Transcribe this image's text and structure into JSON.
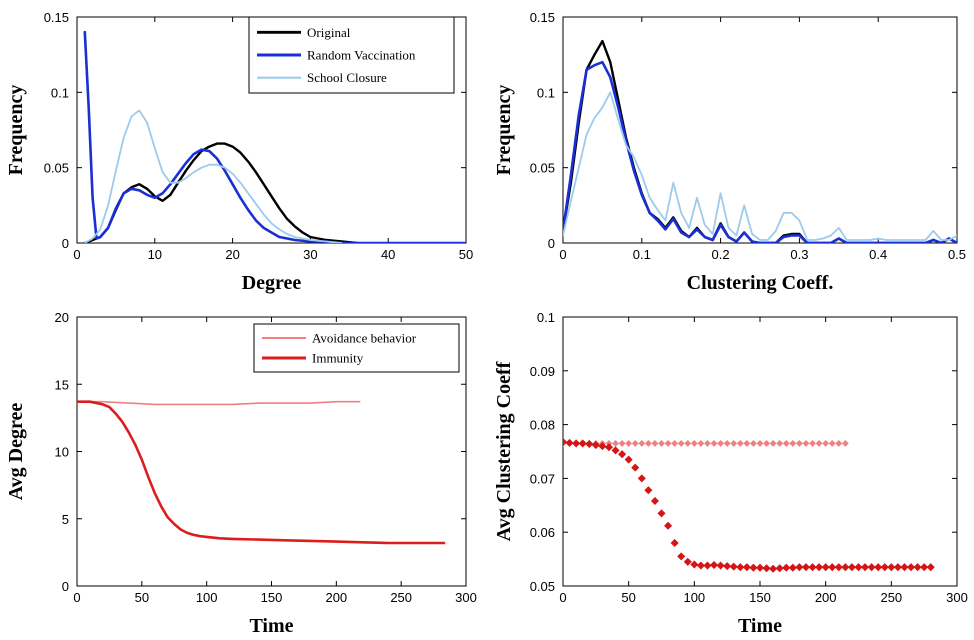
{
  "chart_data": [
    {
      "type": "line",
      "panel": "top-left",
      "xlabel": "Degree",
      "ylabel": "Frequency",
      "xlim": [
        0,
        50
      ],
      "ylim": [
        0,
        0.15
      ],
      "xticks": [
        0,
        10,
        20,
        30,
        40,
        50
      ],
      "yticks": [
        0,
        0.05,
        0.1,
        0.15
      ],
      "xtick_labels": [
        "0",
        "10",
        "20",
        "30",
        "40",
        "50"
      ],
      "ytick_labels": [
        "0",
        "0.05",
        "0.1",
        "0.15"
      ],
      "grid": false,
      "legend_position": "top-right",
      "series": [
        {
          "name": "Original",
          "color": "#000000",
          "x": [
            1,
            2,
            3,
            4,
            5,
            6,
            7,
            8,
            9,
            10,
            11,
            12,
            13,
            14,
            15,
            16,
            17,
            18,
            19,
            20,
            21,
            22,
            23,
            24,
            25,
            26,
            27,
            28,
            29,
            30,
            32,
            34,
            36
          ],
          "y": [
            0.0,
            0.002,
            0.004,
            0.01,
            0.022,
            0.033,
            0.037,
            0.039,
            0.036,
            0.031,
            0.028,
            0.032,
            0.04,
            0.048,
            0.055,
            0.061,
            0.064,
            0.066,
            0.066,
            0.064,
            0.06,
            0.054,
            0.047,
            0.039,
            0.031,
            0.023,
            0.016,
            0.011,
            0.007,
            0.004,
            0.002,
            0.001,
            0.0
          ]
        },
        {
          "name": "Random Vaccination",
          "color": "#1a2fd4",
          "x": [
            1,
            1.5,
            2,
            2.5,
            3,
            4,
            5,
            6,
            7,
            8,
            9,
            10,
            11,
            12,
            13,
            14,
            15,
            16,
            17,
            18,
            19,
            20,
            21,
            22,
            23,
            24,
            25,
            26,
            27,
            28,
            30,
            32,
            34,
            36,
            40,
            45,
            50
          ],
          "y": [
            0.14,
            0.09,
            0.03,
            0.003,
            0.004,
            0.01,
            0.023,
            0.033,
            0.036,
            0.035,
            0.032,
            0.03,
            0.033,
            0.039,
            0.046,
            0.053,
            0.059,
            0.062,
            0.061,
            0.056,
            0.048,
            0.039,
            0.03,
            0.022,
            0.015,
            0.01,
            0.007,
            0.004,
            0.003,
            0.002,
            0.001,
            0.001,
            0.0,
            0.0,
            0.0,
            0.0,
            0.0
          ]
        },
        {
          "name": "School Closure",
          "color": "#9ccbed",
          "x": [
            1,
            2,
            3,
            4,
            5,
            6,
            7,
            8,
            9,
            10,
            11,
            12,
            13,
            14,
            15,
            16,
            17,
            18,
            19,
            20,
            21,
            22,
            23,
            24,
            25,
            26,
            27,
            28,
            30,
            32,
            34
          ],
          "y": [
            0.0,
            0.003,
            0.009,
            0.025,
            0.048,
            0.07,
            0.084,
            0.088,
            0.08,
            0.063,
            0.047,
            0.04,
            0.04,
            0.043,
            0.047,
            0.05,
            0.052,
            0.052,
            0.05,
            0.046,
            0.04,
            0.033,
            0.026,
            0.019,
            0.013,
            0.009,
            0.006,
            0.004,
            0.002,
            0.001,
            0.0
          ]
        }
      ]
    },
    {
      "type": "line",
      "panel": "top-right",
      "xlabel": "Clustering Coeff.",
      "ylabel": "Frequency",
      "xlim": [
        0,
        0.5
      ],
      "ylim": [
        0,
        0.15
      ],
      "xticks": [
        0,
        0.1,
        0.2,
        0.3,
        0.4,
        0.5
      ],
      "yticks": [
        0,
        0.05,
        0.1,
        0.15
      ],
      "xtick_labels": [
        "0",
        "0.1",
        "0.2",
        "0.3",
        "0.4",
        "0.5"
      ],
      "ytick_labels": [
        "0",
        "0.05",
        "0.1",
        "0.15"
      ],
      "grid": false,
      "series": [
        {
          "name": "Original",
          "color": "#000000",
          "x": [
            0,
            0.01,
            0.02,
            0.03,
            0.04,
            0.05,
            0.06,
            0.07,
            0.08,
            0.09,
            0.1,
            0.11,
            0.12,
            0.13,
            0.14,
            0.15,
            0.16,
            0.17,
            0.18,
            0.19,
            0.2,
            0.21,
            0.22,
            0.23,
            0.24,
            0.25,
            0.26,
            0.27,
            0.28,
            0.29,
            0.3,
            0.31,
            0.32,
            0.33,
            0.34,
            0.35,
            0.36,
            0.37,
            0.38,
            0.39,
            0.4,
            0.42,
            0.44,
            0.46,
            0.47,
            0.48,
            0.49,
            0.5
          ],
          "y": [
            0.008,
            0.04,
            0.08,
            0.115,
            0.125,
            0.134,
            0.12,
            0.095,
            0.07,
            0.05,
            0.033,
            0.02,
            0.016,
            0.01,
            0.017,
            0.008,
            0.004,
            0.01,
            0.004,
            0.002,
            0.013,
            0.004,
            0.001,
            0.007,
            0.001,
            0.0,
            0.0,
            0.0,
            0.005,
            0.006,
            0.006,
            0.0,
            0.0,
            0.0,
            0.0,
            0.003,
            0.0,
            0.0,
            0.0,
            0.0,
            0.0,
            0.0,
            0.0,
            0.0,
            0.002,
            0.0,
            0.003,
            0.0
          ]
        },
        {
          "name": "Random Vaccination",
          "color": "#1a2fd4",
          "x": [
            0,
            0.01,
            0.02,
            0.03,
            0.04,
            0.05,
            0.06,
            0.07,
            0.08,
            0.09,
            0.1,
            0.11,
            0.12,
            0.13,
            0.14,
            0.15,
            0.16,
            0.17,
            0.18,
            0.19,
            0.2,
            0.21,
            0.22,
            0.23,
            0.24,
            0.25,
            0.26,
            0.27,
            0.28,
            0.29,
            0.3,
            0.31,
            0.32,
            0.33,
            0.34,
            0.35,
            0.36,
            0.37,
            0.38,
            0.39,
            0.4,
            0.42,
            0.44,
            0.46,
            0.47,
            0.48,
            0.49,
            0.5
          ],
          "y": [
            0.008,
            0.045,
            0.085,
            0.115,
            0.118,
            0.12,
            0.11,
            0.09,
            0.068,
            0.048,
            0.032,
            0.02,
            0.015,
            0.009,
            0.016,
            0.007,
            0.004,
            0.009,
            0.004,
            0.002,
            0.012,
            0.004,
            0.001,
            0.007,
            0.001,
            0.0,
            0.0,
            0.0,
            0.004,
            0.005,
            0.005,
            0.0,
            0.0,
            0.0,
            0.0,
            0.003,
            0.0,
            0.0,
            0.0,
            0.0,
            0.0,
            0.0,
            0.0,
            0.0,
            0.002,
            0.0,
            0.003,
            0.0
          ]
        },
        {
          "name": "School Closure",
          "color": "#9ccbed",
          "x": [
            0,
            0.01,
            0.02,
            0.03,
            0.04,
            0.05,
            0.06,
            0.07,
            0.08,
            0.09,
            0.1,
            0.11,
            0.12,
            0.13,
            0.14,
            0.15,
            0.16,
            0.17,
            0.18,
            0.19,
            0.2,
            0.21,
            0.22,
            0.23,
            0.24,
            0.25,
            0.26,
            0.27,
            0.28,
            0.29,
            0.3,
            0.31,
            0.32,
            0.33,
            0.34,
            0.35,
            0.36,
            0.37,
            0.38,
            0.39,
            0.4,
            0.41,
            0.42,
            0.43,
            0.44,
            0.45,
            0.46,
            0.47,
            0.48,
            0.49,
            0.5
          ],
          "y": [
            0.005,
            0.028,
            0.05,
            0.072,
            0.083,
            0.09,
            0.1,
            0.082,
            0.065,
            0.057,
            0.045,
            0.03,
            0.022,
            0.015,
            0.04,
            0.02,
            0.01,
            0.03,
            0.012,
            0.006,
            0.033,
            0.01,
            0.005,
            0.025,
            0.006,
            0.002,
            0.002,
            0.008,
            0.02,
            0.02,
            0.015,
            0.002,
            0.002,
            0.003,
            0.005,
            0.01,
            0.002,
            0.002,
            0.002,
            0.002,
            0.003,
            0.002,
            0.002,
            0.002,
            0.002,
            0.002,
            0.002,
            0.008,
            0.002,
            0.002,
            0.005
          ]
        }
      ]
    },
    {
      "type": "line",
      "panel": "bottom-left",
      "xlabel": "Time",
      "ylabel": "Avg Degree",
      "xlim": [
        0,
        300
      ],
      "ylim": [
        0,
        20
      ],
      "xticks": [
        0,
        50,
        100,
        150,
        200,
        250,
        300
      ],
      "yticks": [
        0,
        5,
        10,
        15,
        20
      ],
      "xtick_labels": [
        "0",
        "50",
        "100",
        "150",
        "200",
        "250",
        "300"
      ],
      "ytick_labels": [
        "0",
        "5",
        "10",
        "15",
        "20"
      ],
      "grid": false,
      "legend_position": "top-right",
      "series": [
        {
          "name": "Avoidance behavior",
          "color": "#f08080",
          "x": [
            0,
            20,
            40,
            60,
            80,
            100,
            120,
            140,
            160,
            180,
            200,
            218
          ],
          "y": [
            13.7,
            13.7,
            13.6,
            13.5,
            13.5,
            13.5,
            13.5,
            13.6,
            13.6,
            13.6,
            13.7,
            13.7
          ]
        },
        {
          "name": "Immunity",
          "color": "#dd1c1c",
          "x": [
            0,
            10,
            20,
            25,
            30,
            35,
            40,
            45,
            50,
            55,
            60,
            65,
            70,
            75,
            80,
            85,
            90,
            95,
            100,
            110,
            120,
            140,
            160,
            180,
            200,
            220,
            240,
            260,
            283
          ],
          "y": [
            13.7,
            13.7,
            13.5,
            13.3,
            12.8,
            12.2,
            11.4,
            10.5,
            9.4,
            8.1,
            6.9,
            5.9,
            5.1,
            4.6,
            4.2,
            3.95,
            3.8,
            3.7,
            3.65,
            3.55,
            3.5,
            3.45,
            3.4,
            3.35,
            3.3,
            3.25,
            3.2,
            3.2,
            3.2
          ]
        }
      ]
    },
    {
      "type": "scatter",
      "panel": "bottom-right",
      "xlabel": "Time",
      "ylabel": "Avg Clustering Coeff",
      "xlim": [
        0,
        300
      ],
      "ylim": [
        0.05,
        0.1
      ],
      "xticks": [
        0,
        50,
        100,
        150,
        200,
        250,
        300
      ],
      "yticks": [
        0.05,
        0.06,
        0.07,
        0.08,
        0.09,
        0.1
      ],
      "xtick_labels": [
        "0",
        "50",
        "100",
        "150",
        "200",
        "250",
        "300"
      ],
      "ytick_labels": [
        "0.05",
        "0.06",
        "0.07",
        "0.08",
        "0.09",
        "0.1"
      ],
      "grid": false,
      "series": [
        {
          "name": "Avoidance behavior",
          "color": "#f08080",
          "marker": "diamond",
          "x": [
            0,
            5,
            10,
            15,
            20,
            25,
            30,
            35,
            40,
            45,
            50,
            55,
            60,
            65,
            70,
            75,
            80,
            85,
            90,
            95,
            100,
            105,
            110,
            115,
            120,
            125,
            130,
            135,
            140,
            145,
            150,
            155,
            160,
            165,
            170,
            175,
            180,
            185,
            190,
            195,
            200,
            205,
            210,
            215
          ],
          "y": [
            0.0765,
            0.0765,
            0.0765,
            0.0765,
            0.0765,
            0.0765,
            0.0765,
            0.0765,
            0.0765,
            0.0765,
            0.0765,
            0.0765,
            0.0765,
            0.0765,
            0.0765,
            0.0765,
            0.0765,
            0.0765,
            0.0765,
            0.0765,
            0.0765,
            0.0765,
            0.0765,
            0.0765,
            0.0765,
            0.0765,
            0.0765,
            0.0765,
            0.0765,
            0.0765,
            0.0765,
            0.0765,
            0.0765,
            0.0765,
            0.0765,
            0.0765,
            0.0765,
            0.0765,
            0.0765,
            0.0765,
            0.0765,
            0.0765,
            0.0765,
            0.0765
          ]
        },
        {
          "name": "Immunity",
          "color": "#d41515",
          "marker": "diamond",
          "x": [
            0,
            5,
            10,
            15,
            20,
            25,
            30,
            35,
            40,
            45,
            50,
            55,
            60,
            65,
            70,
            75,
            80,
            85,
            90,
            95,
            100,
            105,
            110,
            115,
            120,
            125,
            130,
            135,
            140,
            145,
            150,
            155,
            160,
            165,
            170,
            175,
            180,
            185,
            190,
            195,
            200,
            205,
            210,
            215,
            220,
            225,
            230,
            235,
            240,
            245,
            250,
            255,
            260,
            265,
            270,
            275,
            280
          ],
          "y": [
            0.0768,
            0.0766,
            0.0765,
            0.0765,
            0.0764,
            0.0762,
            0.076,
            0.0758,
            0.0752,
            0.0745,
            0.0735,
            0.072,
            0.07,
            0.0678,
            0.0658,
            0.0635,
            0.0612,
            0.058,
            0.0555,
            0.0545,
            0.054,
            0.0538,
            0.0538,
            0.0539,
            0.0538,
            0.0537,
            0.0536,
            0.0535,
            0.0535,
            0.0534,
            0.0534,
            0.0533,
            0.0532,
            0.0533,
            0.0534,
            0.0534,
            0.0535,
            0.0535,
            0.0535,
            0.0535,
            0.0535,
            0.0535,
            0.0535,
            0.0535,
            0.0535,
            0.0535,
            0.0535,
            0.0535,
            0.0535,
            0.0535,
            0.0535,
            0.0535,
            0.0535,
            0.0535,
            0.0535,
            0.0535,
            0.0535
          ]
        }
      ]
    }
  ]
}
